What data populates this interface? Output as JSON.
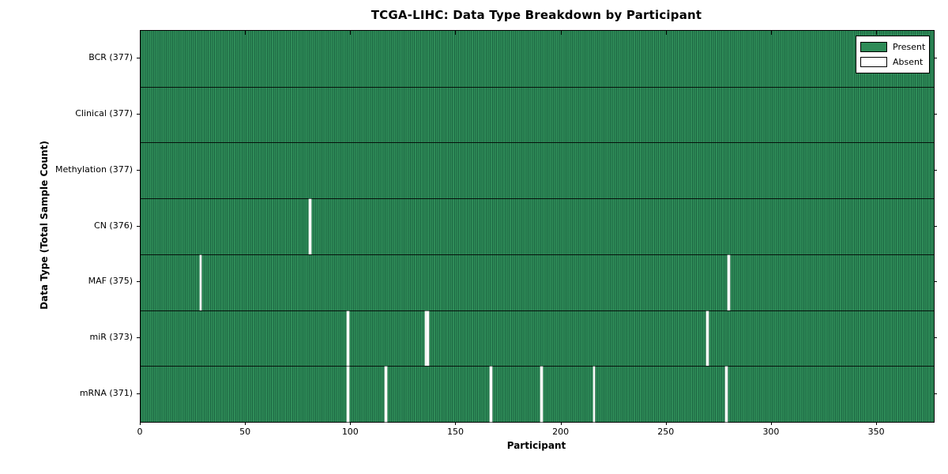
{
  "title": "TCGA-LIHC: Data Type Breakdown by Participant",
  "x_axis_title": "Participant",
  "y_axis_title": "Data Type (Total Sample Count)",
  "legend": {
    "present_label": "Present",
    "absent_label": "Absent"
  },
  "colors": {
    "present_fill": "#2e8b57",
    "present_edge": "#1d6843",
    "absent_fill": "#ffffff",
    "axis": "#000000",
    "background": "#ffffff"
  },
  "chart_data": {
    "type": "heatmap",
    "title": "TCGA-LIHC: Data Type Breakdown by Participant",
    "xlabel": "Participant",
    "ylabel": "Data Type (Total Sample Count)",
    "x_range": [
      0,
      377
    ],
    "x_ticks": [
      0,
      50,
      100,
      150,
      200,
      250,
      300,
      350
    ],
    "grid": false,
    "legend_position": "upper-right-inside",
    "legend_entries": [
      {
        "label": "Present",
        "color": "#2e8b57"
      },
      {
        "label": "Absent",
        "color": "#ffffff"
      }
    ],
    "rows": [
      {
        "label": "BCR (377)",
        "data_type": "BCR",
        "total_samples": 377,
        "absent_participants": []
      },
      {
        "label": "Clinical (377)",
        "data_type": "Clinical",
        "total_samples": 377,
        "absent_participants": []
      },
      {
        "label": "Methylation (377)",
        "data_type": "Methylation",
        "total_samples": 377,
        "absent_participants": []
      },
      {
        "label": "CN (376)",
        "data_type": "CN",
        "total_samples": 376,
        "absent_participants": [
          80
        ]
      },
      {
        "label": "MAF (375)",
        "data_type": "MAF",
        "total_samples": 375,
        "absent_participants": [
          28,
          279
        ]
      },
      {
        "label": "miR (373)",
        "data_type": "miR",
        "total_samples": 373,
        "absent_participants": [
          98,
          135,
          136,
          269
        ]
      },
      {
        "label": "mRNA (371)",
        "data_type": "mRNA",
        "total_samples": 371,
        "absent_participants": [
          98,
          116,
          166,
          190,
          215,
          278
        ]
      }
    ]
  }
}
